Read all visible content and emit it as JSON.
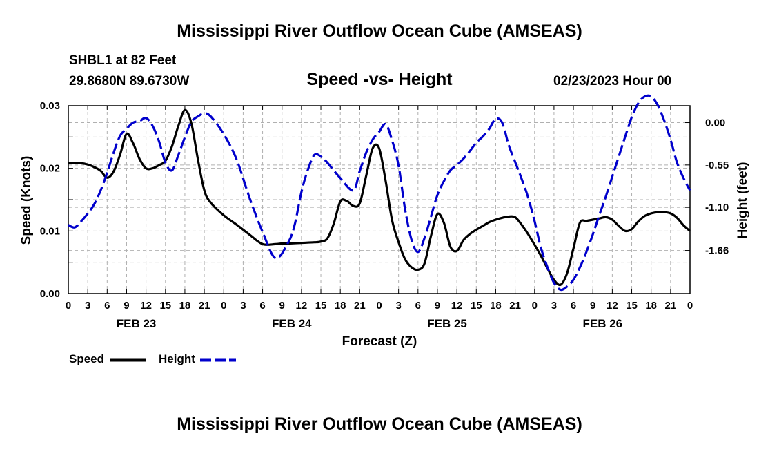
{
  "page": {
    "title_top": "Mississippi River Outflow Ocean Cube (AMSEAS)",
    "title_bottom": "Mississippi River Outflow Ocean Cube (AMSEAS)",
    "station": "SHBL1 at 82 Feet",
    "coords": "29.8680N  89.6730W",
    "subtitle": "Speed -vs- Height",
    "datetime": "02/23/2023 Hour 00",
    "legend": [
      {
        "label": "Speed",
        "color": "#000000",
        "style": "solid"
      },
      {
        "label": "Height",
        "color": "#0000cc",
        "style": "dashed"
      }
    ]
  },
  "chart_data": {
    "type": "line",
    "title": "Speed -vs- Height",
    "xlabel": "Forecast (Z)",
    "ylabel": "Speed (Knots)",
    "y2label": "Height (feet)",
    "x_range_hours": [
      0,
      96
    ],
    "x_tick_step_hours": 3,
    "x_tick_labels": [
      "0",
      "3",
      "6",
      "9",
      "12",
      "15",
      "18",
      "21",
      "0",
      "3",
      "6",
      "9",
      "12",
      "15",
      "18",
      "21",
      "0",
      "3",
      "6",
      "9",
      "12",
      "15",
      "18",
      "21",
      "0",
      "3",
      "6",
      "9",
      "12",
      "15",
      "18",
      "21",
      "0"
    ],
    "date_labels": [
      {
        "label": "FEB 23",
        "hour": 10.5
      },
      {
        "label": "FEB 24",
        "hour": 34.5
      },
      {
        "label": "FEB 25",
        "hour": 58.5
      },
      {
        "label": "FEB 26",
        "hour": 82.5
      }
    ],
    "ylim": [
      0,
      0.03
    ],
    "y_ticks": [
      0,
      0.005,
      0.01,
      0.015,
      0.02,
      0.025,
      0.03
    ],
    "y_tick_labels": [
      "0.00",
      "",
      "0.01",
      "",
      "0.02",
      "",
      "0.03"
    ],
    "y2lim": [
      -2.22,
      0.22
    ],
    "y2_ticks": [
      0.0,
      -0.55,
      -1.1,
      -1.66
    ],
    "y2_tick_labels": [
      "0.00",
      "-0.55",
      "-1.10",
      "-1.66"
    ],
    "grid": true,
    "series": [
      {
        "name": "Speed",
        "axis": "left",
        "color": "#000000",
        "dash": "solid",
        "x": [
          0,
          2,
          3,
          4,
          5,
          6,
          7,
          8,
          9,
          10,
          11,
          12,
          13,
          14,
          15,
          16,
          17,
          18,
          19,
          20,
          21,
          22,
          24,
          26,
          28,
          30,
          32,
          33,
          34,
          36,
          38,
          39,
          40,
          41,
          42,
          43,
          44,
          45,
          46,
          47,
          48,
          49,
          50,
          51,
          52,
          53,
          54,
          55,
          56,
          57,
          58,
          59,
          60,
          61,
          62,
          63,
          64,
          65,
          66,
          67,
          68,
          69,
          70,
          71,
          72,
          73,
          74,
          75,
          76,
          77,
          78,
          79,
          80,
          81,
          82,
          83,
          84,
          85,
          86,
          87,
          88,
          89,
          90,
          91,
          92,
          93,
          94,
          95,
          96
        ],
        "values": [
          0.0208,
          0.0208,
          0.0206,
          0.0202,
          0.0196,
          0.0185,
          0.0195,
          0.0222,
          0.0255,
          0.024,
          0.0215,
          0.02,
          0.02,
          0.0205,
          0.0212,
          0.0235,
          0.0268,
          0.0293,
          0.0272,
          0.0215,
          0.0165,
          0.0145,
          0.0125,
          0.011,
          0.0094,
          0.0079,
          0.0079,
          0.008,
          0.008,
          0.0081,
          0.0082,
          0.0083,
          0.0088,
          0.0112,
          0.0147,
          0.0148,
          0.014,
          0.0144,
          0.0188,
          0.0232,
          0.0232,
          0.018,
          0.0117,
          0.0082,
          0.0055,
          0.0042,
          0.0038,
          0.0048,
          0.0092,
          0.0127,
          0.0113,
          0.0075,
          0.0068,
          0.0085,
          0.0095,
          0.0102,
          0.0108,
          0.0114,
          0.0118,
          0.0121,
          0.0123,
          0.0122,
          0.011,
          0.0095,
          0.0078,
          0.006,
          0.004,
          0.0022,
          0.0014,
          0.0032,
          0.0072,
          0.0113,
          0.0116,
          0.0118,
          0.012,
          0.0122,
          0.0118,
          0.0108,
          0.01,
          0.0103,
          0.0115,
          0.0124,
          0.0128,
          0.013,
          0.013,
          0.0128,
          0.0121,
          0.0109,
          0.01
        ]
      },
      {
        "name": "Height",
        "axis": "right",
        "color": "#0000cc",
        "dash": "dashed",
        "x": [
          0,
          1,
          2,
          3,
          4,
          5,
          6,
          7,
          8,
          9,
          10,
          11,
          12,
          13,
          14,
          15,
          16,
          17,
          18,
          19,
          20,
          21,
          22,
          24,
          26,
          28,
          30,
          32,
          34,
          35,
          36,
          37,
          38,
          39,
          40,
          42,
          44,
          45,
          46,
          47,
          48,
          49,
          50,
          51,
          52,
          53,
          54,
          55,
          56,
          57,
          58,
          59,
          60,
          61,
          62,
          63,
          64,
          65,
          66,
          67,
          68,
          69,
          70,
          71,
          72,
          73,
          74,
          75,
          76,
          77,
          78,
          79,
          80,
          81,
          82,
          83,
          84,
          85,
          86,
          87,
          88,
          89,
          90,
          91,
          92,
          93,
          94,
          95,
          96
        ],
        "values": [
          -1.33,
          -1.36,
          -1.28,
          -1.18,
          -1.06,
          -0.88,
          -0.65,
          -0.39,
          -0.17,
          -0.08,
          0.0,
          0.02,
          0.06,
          -0.04,
          -0.24,
          -0.52,
          -0.62,
          -0.42,
          -0.19,
          0.01,
          0.08,
          0.12,
          0.08,
          -0.15,
          -0.48,
          -0.98,
          -1.42,
          -1.76,
          -1.55,
          -1.31,
          -0.9,
          -0.61,
          -0.42,
          -0.44,
          -0.52,
          -0.72,
          -0.88,
          -0.63,
          -0.39,
          -0.22,
          -0.12,
          -0.02,
          -0.23,
          -0.56,
          -1.12,
          -1.52,
          -1.68,
          -1.5,
          -1.22,
          -0.94,
          -0.76,
          -0.62,
          -0.55,
          -0.47,
          -0.37,
          -0.26,
          -0.18,
          -0.08,
          0.05,
          0.0,
          -0.29,
          -0.51,
          -0.73,
          -0.97,
          -1.28,
          -1.63,
          -1.88,
          -2.08,
          -2.17,
          -2.13,
          -2.04,
          -1.88,
          -1.68,
          -1.45,
          -1.2,
          -0.96,
          -0.7,
          -0.44,
          -0.18,
          0.07,
          0.25,
          0.34,
          0.34,
          0.23,
          0.03,
          -0.22,
          -0.52,
          -0.72,
          -0.88
        ]
      }
    ]
  }
}
